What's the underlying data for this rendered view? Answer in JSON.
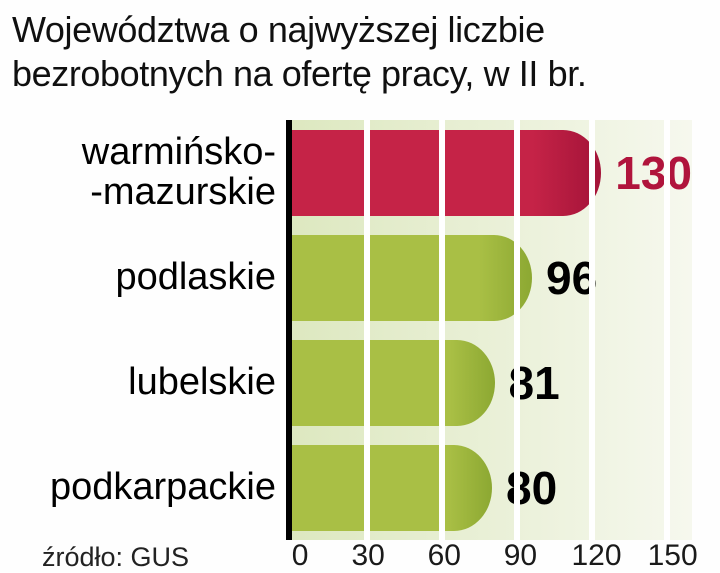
{
  "title": {
    "line1": "Województwa o najwyższej liczbie",
    "line2": "bezrobotnych na ofertę pracy, w II br."
  },
  "source": "źródło: GUS",
  "chart_data": {
    "type": "bar",
    "orientation": "horizontal",
    "title": "Województwa o najwyższej liczbie bezrobotnych na ofertę pracy, w II br.",
    "source": "źródło: GUS",
    "categories": [
      "warmińsko--mazurskie",
      "podlaskie",
      "lubelskie",
      "podkarpackie"
    ],
    "category_lines": [
      [
        "warmińsko-",
        "-mazurskie"
      ],
      [
        "podlaskie"
      ],
      [
        "lubelskie"
      ],
      [
        "podkarpackie"
      ]
    ],
    "values": [
      130,
      96,
      81,
      80
    ],
    "xlabel": "",
    "ylabel": "",
    "xlim": [
      0,
      150
    ],
    "xticks": [
      "0",
      "30",
      "60",
      "90",
      "120",
      "150"
    ],
    "grid": true,
    "legend": null,
    "bar_colors": [
      "#c52347",
      "#a9bf45",
      "#a9bf45",
      "#a9bf45"
    ],
    "bar_tip_colors": [
      "#a31338",
      "#8ca832",
      "#8ca832",
      "#8ca832"
    ],
    "value_label_colors": [
      "#b0143c",
      "#000000",
      "#000000",
      "#000000"
    ],
    "plot_bg": [
      "#dde8c0",
      "#f6f8ee"
    ],
    "gridline_color": "#ffffff",
    "axis_color": "#000000"
  }
}
